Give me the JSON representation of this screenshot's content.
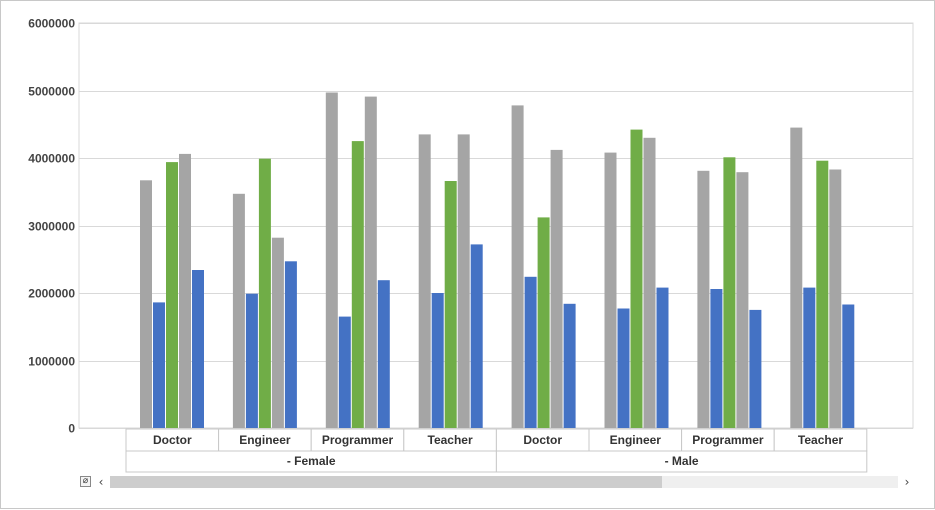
{
  "chart_data": {
    "type": "bar",
    "y_ticks": [
      "0",
      "1000000",
      "2000000",
      "3000000",
      "4000000",
      "5000000",
      "6000000"
    ],
    "ylim": [
      0,
      6000000
    ],
    "grid": true,
    "legend": "none",
    "groups": [
      {
        "label": "- Female",
        "categories": [
          "Doctor",
          "Engineer",
          "Programmer",
          "Teacher"
        ]
      },
      {
        "label": "- Male",
        "categories": [
          "Doctor",
          "Engineer",
          "Programmer",
          "Teacher"
        ]
      }
    ],
    "series_colors": [
      "#a5a5a5",
      "#4472c4",
      "#70ad47",
      "#a5a5a5",
      "#4472c4"
    ],
    "series": [
      {
        "values": [
          3670000,
          3470000,
          4970000,
          4350000,
          4780000,
          4080000,
          3810000,
          4450000
        ]
      },
      {
        "values": [
          1860000,
          1990000,
          1650000,
          2000000,
          2240000,
          1770000,
          2060000,
          2080000
        ]
      },
      {
        "values": [
          3940000,
          3990000,
          4250000,
          3660000,
          3120000,
          4420000,
          4010000,
          3960000
        ]
      },
      {
        "values": [
          4060000,
          2820000,
          4910000,
          4350000,
          4120000,
          4300000,
          3790000,
          3830000
        ]
      },
      {
        "values": [
          2340000,
          2470000,
          2190000,
          2720000,
          1840000,
          2080000,
          1750000,
          1830000
        ]
      }
    ]
  },
  "scrollbar": {
    "reset_icon": "⌀",
    "left_icon": "‹",
    "right_icon": "›",
    "thumb_fraction": 0.7
  }
}
